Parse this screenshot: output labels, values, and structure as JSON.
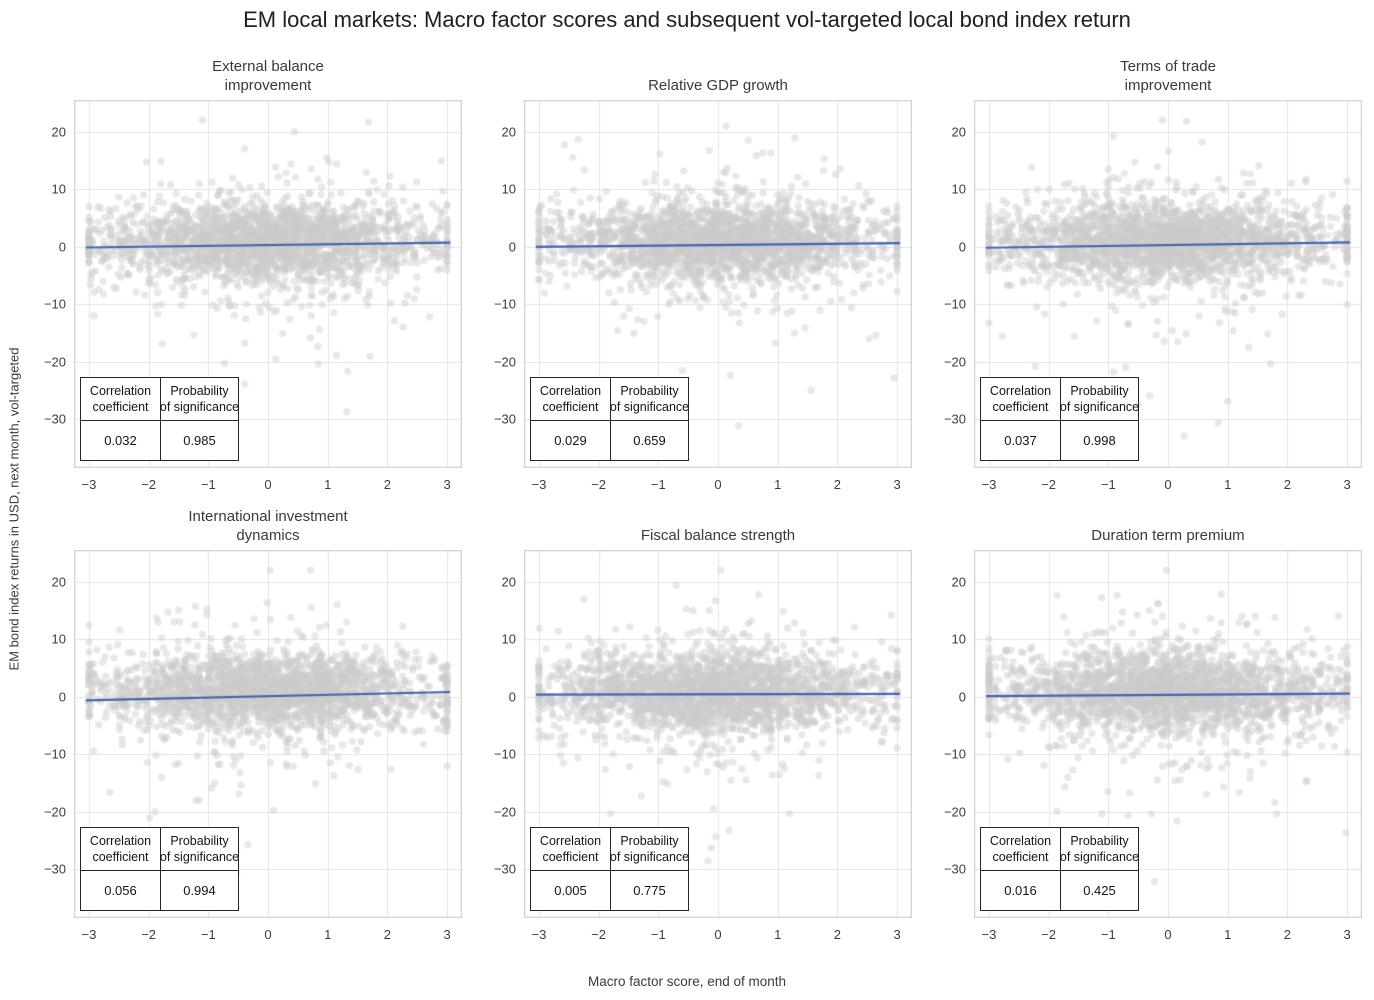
{
  "figure": {
    "title": "EM local markets: Macro factor scores and subsequent vol-targeted local bond index return",
    "xlabel": "Macro factor score, end of month",
    "ylabel": "EM bond index returns in USD, next month, vol-targeted"
  },
  "stats_table": {
    "col1_header": "Correlation\ncoefficient",
    "col2_header": "Probability\nof significance"
  },
  "style": {
    "scatter_color": "rgba(205,205,205,0.45)",
    "line_color": "#4066b1",
    "grid_color": "#e4e4e4",
    "spine_color": "#cfcfcf",
    "plot_bg": "#ffffff"
  },
  "chart_data": {
    "type": "scatter",
    "layout": "2 rows x 3 columns, shared x and y axes",
    "grid": "on",
    "xticks": [
      -3,
      -2,
      -1,
      0,
      1,
      2,
      3
    ],
    "yticks": [
      20,
      10,
      0,
      -10,
      -20,
      -30
    ],
    "xlim": [
      -3.25,
      3.25
    ],
    "ylim": [
      -38.5,
      25.5
    ],
    "panels": [
      {
        "title": "External balance\nimprovement",
        "correlation_coefficient": "0.032",
        "probability_of_significance": "0.985",
        "regression_line": {
          "x": [
            -3.05,
            3.05
          ],
          "y": [
            -0.15,
            0.68
          ]
        },
        "scatter": {
          "n": 2400,
          "seed": 101,
          "x_model": "normal(0,1.2) 80% + uniform(-3.2,3.2) 20%, winsorized at -3 and 3",
          "y_model": "normal(0.9,3.2) 84% + normal(0.3,7.5) 15.7% + uniform(-15,-33) 0.3%, clipped to [-33,22]"
        }
      },
      {
        "title": "Relative GDP growth",
        "correlation_coefficient": "0.029",
        "probability_of_significance": "0.659",
        "regression_line": {
          "x": [
            -3.05,
            3.05
          ],
          "y": [
            -0.05,
            0.6
          ]
        },
        "scatter": {
          "n": 2400,
          "seed": 102,
          "x_model": "normal(0,1.2) 80% + uniform(-3.2,3.2) 20%, winsorized at -3 and 3",
          "y_model": "normal(0.9,3.2) 84% + normal(0.3,7.5) 15.7% + uniform(-15,-33) 0.3%, clipped to [-33,22]"
        }
      },
      {
        "title": "Terms of trade\nimprovement",
        "correlation_coefficient": "0.037",
        "probability_of_significance": "0.998",
        "regression_line": {
          "x": [
            -3.05,
            3.05
          ],
          "y": [
            -0.2,
            0.75
          ]
        },
        "scatter": {
          "n": 2400,
          "seed": 103,
          "x_model": "normal(0,1.2) 80% + uniform(-3.2,3.2) 20%, winsorized at -3 and 3",
          "y_model": "normal(0.9,3.2) 84% + normal(0.3,7.5) 15.7% + uniform(-15,-33) 0.3%, clipped to [-33,22]"
        }
      },
      {
        "title": "International investment\ndynamics",
        "correlation_coefficient": "0.056",
        "probability_of_significance": "0.994",
        "regression_line": {
          "x": [
            -3.05,
            3.05
          ],
          "y": [
            -0.65,
            0.8
          ]
        },
        "scatter": {
          "n": 2400,
          "seed": 104,
          "x_model": "normal(0,1.2) 80% + uniform(-3.2,3.2) 20%, winsorized at -3 and 3",
          "y_model": "normal(0.9,3.2) 84% + normal(0.3,7.5) 15.7% + uniform(-15,-33) 0.3%, clipped to [-33,22]"
        }
      },
      {
        "title": "Fiscal balance strength",
        "correlation_coefficient": "0.005",
        "probability_of_significance": "0.775",
        "regression_line": {
          "x": [
            -3.05,
            3.05
          ],
          "y": [
            0.35,
            0.48
          ]
        },
        "scatter": {
          "n": 2400,
          "seed": 105,
          "x_model": "normal(0,1.2) 80% + uniform(-3.2,3.2) 20%, winsorized at -3 and 3",
          "y_model": "normal(0.9,3.2) 84% + normal(0.3,7.5) 15.7% + uniform(-15,-33) 0.3%, clipped to [-33,22]"
        }
      },
      {
        "title": "Duration term premium",
        "correlation_coefficient": "0.016",
        "probability_of_significance": "0.425",
        "regression_line": {
          "x": [
            -3.05,
            3.05
          ],
          "y": [
            0.1,
            0.52
          ]
        },
        "scatter": {
          "n": 2400,
          "seed": 106,
          "x_model": "normal(0,1.2) 80% + uniform(-3.2,3.2) 20%, winsorized at -3 and 3",
          "y_model": "normal(0.9,3.2) 84% + normal(0.3,7.5) 15.7% + uniform(-15,-33) 0.3%, clipped to [-33,22]"
        }
      }
    ]
  }
}
